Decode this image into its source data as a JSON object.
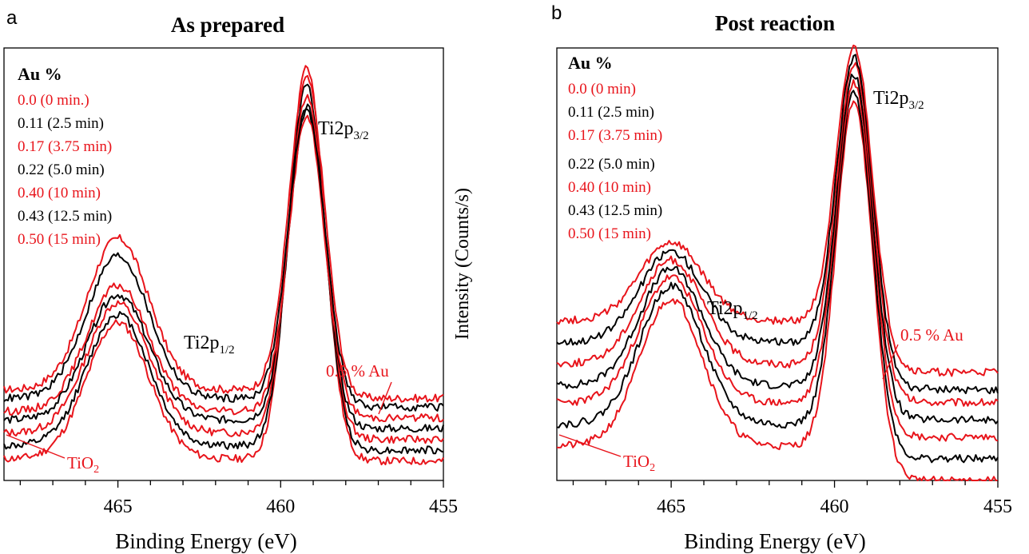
{
  "colors": {
    "red": "#e8141b",
    "black": "#000000"
  },
  "chart_data": [
    {
      "type": "line",
      "panel_label": "a",
      "title": "As prepared",
      "xlabel": "Binding Energy (eV)",
      "ylabel": "",
      "xlim": [
        468.5,
        455
      ],
      "x_reversed": true,
      "y_ticks_shown": false,
      "xticks": [
        "465",
        "460",
        "455"
      ],
      "legend": {
        "heading": "Au %",
        "entries": [
          {
            "text": "0.0 (0 min.)",
            "color": "red"
          },
          {
            "text": "0.11 (2.5 min)",
            "color": "black"
          },
          {
            "text": "0.17 (3.75 min)",
            "color": "red"
          },
          {
            "text": "0.22 (5.0 min)",
            "color": "black"
          },
          {
            "text": "0.40 (10 min)",
            "color": "red"
          },
          {
            "text": "0.43 (12.5 min)",
            "color": "black"
          },
          {
            "text": "0.50 (15 min)",
            "color": "red"
          }
        ]
      },
      "peaks": {
        "p32": {
          "main": "Ti2p",
          "sub": "3/2",
          "position_eV": 459.2
        },
        "p12": {
          "main": "Ti2p",
          "sub": "1/2",
          "position_eV": 465.0
        }
      },
      "annotations": {
        "top": "0.5 % Au",
        "bottom": "TiO",
        "bottom_sub": "2"
      },
      "series": [
        {
          "color": "red",
          "baseline": 0.05,
          "peak32": 0.955,
          "peak12": 0.365,
          "tail": 0.045,
          "seed": 11
        },
        {
          "color": "black",
          "baseline": 0.08,
          "peak32": 0.915,
          "peak12": 0.385,
          "tail": 0.07,
          "seed": 12
        },
        {
          "color": "red",
          "baseline": 0.11,
          "peak32": 0.89,
          "peak12": 0.41,
          "tail": 0.095,
          "seed": 13
        },
        {
          "color": "black",
          "baseline": 0.14,
          "peak32": 0.855,
          "peak12": 0.43,
          "tail": 0.12,
          "seed": 14
        },
        {
          "color": "red",
          "baseline": 0.16,
          "peak32": 0.84,
          "peak12": 0.45,
          "tail": 0.145,
          "seed": 15
        },
        {
          "color": "black",
          "baseline": 0.19,
          "peak32": 0.865,
          "peak12": 0.52,
          "tail": 0.17,
          "seed": 16
        },
        {
          "color": "red",
          "baseline": 0.21,
          "peak32": 0.93,
          "peak12": 0.56,
          "tail": 0.19,
          "seed": 17
        }
      ]
    },
    {
      "type": "line",
      "panel_label": "b",
      "title": "Post reaction",
      "xlabel": "Binding Energy (eV)",
      "ylabel": "Intensity (Counts/s)",
      "xlim": [
        468.5,
        455
      ],
      "x_reversed": true,
      "y_ticks_shown": false,
      "xticks": [
        "465",
        "460",
        "455"
      ],
      "legend": {
        "heading": "Au %",
        "entries": [
          {
            "text": "0.0 (0 min)",
            "color": "red"
          },
          {
            "text": "0.11 (2.5 min)",
            "color": "black"
          },
          {
            "text": "0.17 (3.75 min)",
            "color": "red"
          },
          {
            "text": "0.22 (5.0 min)",
            "color": "black"
          },
          {
            "text": "0.40 (10 min)",
            "color": "red"
          },
          {
            "text": "0.43 (12.5 min)",
            "color": "black"
          },
          {
            "text": "0.50 (15 min)",
            "color": "red"
          }
        ]
      },
      "peaks": {
        "p32": {
          "main": "Ti2p",
          "sub": "3/2",
          "position_eV": 459.4
        },
        "p12": {
          "main": "Ti2p",
          "sub": "1/2",
          "position_eV": 465.0
        }
      },
      "annotations": {
        "top": "0.5 % Au",
        "bottom": "TiO",
        "bottom_sub": "2"
      },
      "series": [
        {
          "color": "red",
          "baseline": 0.08,
          "peak32": 0.88,
          "peak12": 0.42,
          "tail": 0.0,
          "seed": 21
        },
        {
          "color": "black",
          "baseline": 0.13,
          "peak32": 0.9,
          "peak12": 0.45,
          "tail": 0.05,
          "seed": 22
        },
        {
          "color": "red",
          "baseline": 0.18,
          "peak32": 0.92,
          "peak12": 0.47,
          "tail": 0.1,
          "seed": 23
        },
        {
          "color": "black",
          "baseline": 0.22,
          "peak32": 0.94,
          "peak12": 0.49,
          "tail": 0.14,
          "seed": 24
        },
        {
          "color": "red",
          "baseline": 0.27,
          "peak32": 0.96,
          "peak12": 0.51,
          "tail": 0.18,
          "seed": 25
        },
        {
          "color": "black",
          "baseline": 0.32,
          "peak32": 0.98,
          "peak12": 0.53,
          "tail": 0.21,
          "seed": 26
        },
        {
          "color": "red",
          "baseline": 0.37,
          "peak32": 1.0,
          "peak12": 0.55,
          "tail": 0.25,
          "seed": 27
        }
      ]
    }
  ]
}
